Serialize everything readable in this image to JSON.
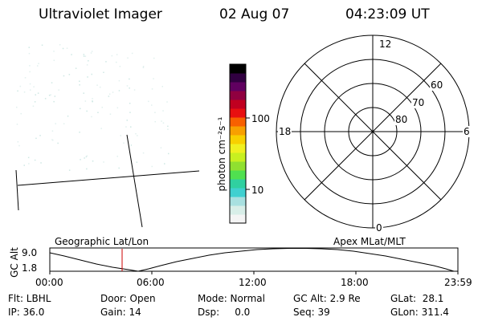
{
  "header": {
    "instrument": "Ultraviolet Imager",
    "date": "02 Aug 07",
    "time": "04:23:09 UT"
  },
  "colorbar": {
    "label": "photon cm⁻²s⁻¹",
    "ticks": [
      "100",
      "10"
    ],
    "colors": [
      "#f4f4f4",
      "#d8eee8",
      "#a8e0e0",
      "#40d0d0",
      "#30d0a0",
      "#50e050",
      "#90e030",
      "#c8f020",
      "#f0f020",
      "#f8d000",
      "#f8a000",
      "#f86000",
      "#e81010",
      "#c00020",
      "#900040",
      "#600060",
      "#300040",
      "#000000"
    ]
  },
  "polar": {
    "lat_labels": [
      "60",
      "70",
      "80"
    ],
    "mlt_labels": {
      "top": "12",
      "left": "18",
      "right": "6",
      "bottom": "0"
    }
  },
  "timeline": {
    "y_axis_label": "GC Alt",
    "y_ticks": [
      "9.0",
      "1.8"
    ],
    "left_title": "Geographic Lat/Lon",
    "right_title": "Apex MLat/MLT",
    "x_ticks": [
      "00:00",
      "06:00",
      "12:00",
      "18:00",
      "23:59"
    ],
    "marker_color": "#cc0000"
  },
  "status": {
    "flt": "Flt: LBHL",
    "ip": "IP: 36.0",
    "door": "Door: Open",
    "gain": "Gain: 14",
    "mode": "Mode: Normal",
    "dsp": "Dsp:     0.0",
    "gc_alt": "GC Alt: 2.9 Re",
    "seq": "Seq: 39",
    "glat": "GLat:  28.1",
    "glon": "GLon: 311.4"
  }
}
